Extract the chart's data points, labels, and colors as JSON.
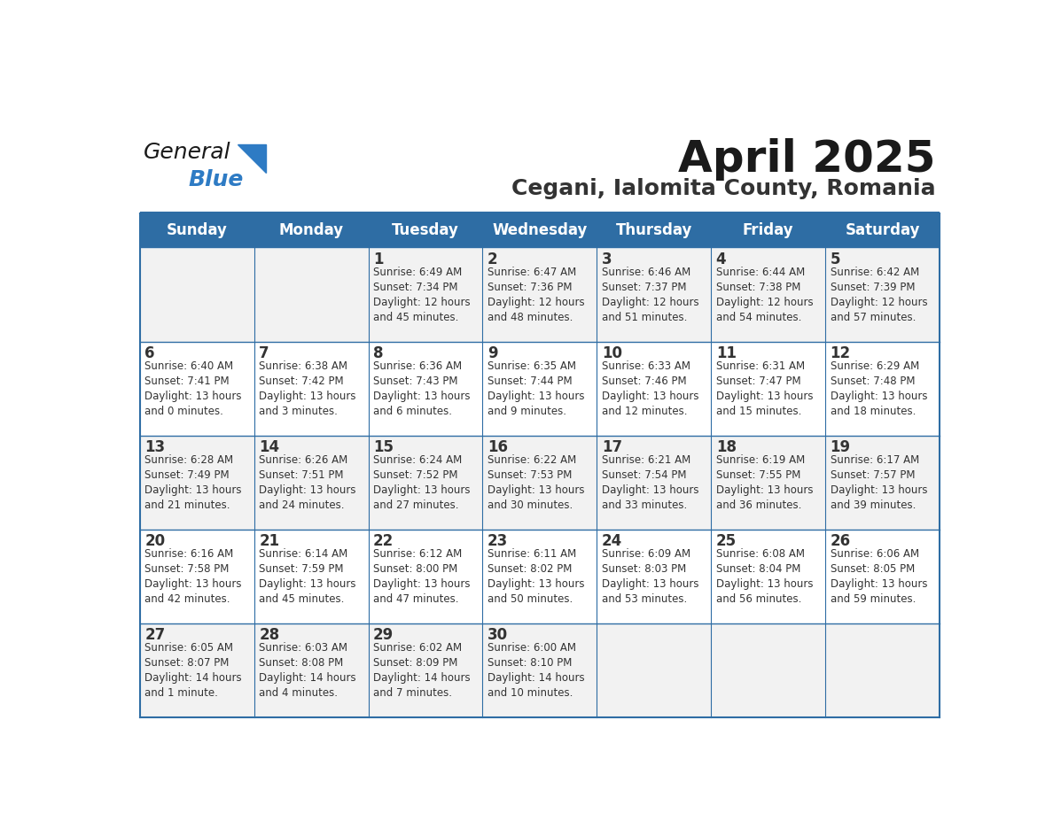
{
  "title": "April 2025",
  "subtitle": "Cegani, Ialomita County, Romania",
  "header_bg": "#2E6DA4",
  "header_text_color": "#FFFFFF",
  "cell_bg_odd": "#F2F2F2",
  "cell_bg_even": "#FFFFFF",
  "cell_text_color": "#333333",
  "day_headers": [
    "Sunday",
    "Monday",
    "Tuesday",
    "Wednesday",
    "Thursday",
    "Friday",
    "Saturday"
  ],
  "weeks": [
    [
      {
        "day": "",
        "info": ""
      },
      {
        "day": "",
        "info": ""
      },
      {
        "day": "1",
        "info": "Sunrise: 6:49 AM\nSunset: 7:34 PM\nDaylight: 12 hours\nand 45 minutes."
      },
      {
        "day": "2",
        "info": "Sunrise: 6:47 AM\nSunset: 7:36 PM\nDaylight: 12 hours\nand 48 minutes."
      },
      {
        "day": "3",
        "info": "Sunrise: 6:46 AM\nSunset: 7:37 PM\nDaylight: 12 hours\nand 51 minutes."
      },
      {
        "day": "4",
        "info": "Sunrise: 6:44 AM\nSunset: 7:38 PM\nDaylight: 12 hours\nand 54 minutes."
      },
      {
        "day": "5",
        "info": "Sunrise: 6:42 AM\nSunset: 7:39 PM\nDaylight: 12 hours\nand 57 minutes."
      }
    ],
    [
      {
        "day": "6",
        "info": "Sunrise: 6:40 AM\nSunset: 7:41 PM\nDaylight: 13 hours\nand 0 minutes."
      },
      {
        "day": "7",
        "info": "Sunrise: 6:38 AM\nSunset: 7:42 PM\nDaylight: 13 hours\nand 3 minutes."
      },
      {
        "day": "8",
        "info": "Sunrise: 6:36 AM\nSunset: 7:43 PM\nDaylight: 13 hours\nand 6 minutes."
      },
      {
        "day": "9",
        "info": "Sunrise: 6:35 AM\nSunset: 7:44 PM\nDaylight: 13 hours\nand 9 minutes."
      },
      {
        "day": "10",
        "info": "Sunrise: 6:33 AM\nSunset: 7:46 PM\nDaylight: 13 hours\nand 12 minutes."
      },
      {
        "day": "11",
        "info": "Sunrise: 6:31 AM\nSunset: 7:47 PM\nDaylight: 13 hours\nand 15 minutes."
      },
      {
        "day": "12",
        "info": "Sunrise: 6:29 AM\nSunset: 7:48 PM\nDaylight: 13 hours\nand 18 minutes."
      }
    ],
    [
      {
        "day": "13",
        "info": "Sunrise: 6:28 AM\nSunset: 7:49 PM\nDaylight: 13 hours\nand 21 minutes."
      },
      {
        "day": "14",
        "info": "Sunrise: 6:26 AM\nSunset: 7:51 PM\nDaylight: 13 hours\nand 24 minutes."
      },
      {
        "day": "15",
        "info": "Sunrise: 6:24 AM\nSunset: 7:52 PM\nDaylight: 13 hours\nand 27 minutes."
      },
      {
        "day": "16",
        "info": "Sunrise: 6:22 AM\nSunset: 7:53 PM\nDaylight: 13 hours\nand 30 minutes."
      },
      {
        "day": "17",
        "info": "Sunrise: 6:21 AM\nSunset: 7:54 PM\nDaylight: 13 hours\nand 33 minutes."
      },
      {
        "day": "18",
        "info": "Sunrise: 6:19 AM\nSunset: 7:55 PM\nDaylight: 13 hours\nand 36 minutes."
      },
      {
        "day": "19",
        "info": "Sunrise: 6:17 AM\nSunset: 7:57 PM\nDaylight: 13 hours\nand 39 minutes."
      }
    ],
    [
      {
        "day": "20",
        "info": "Sunrise: 6:16 AM\nSunset: 7:58 PM\nDaylight: 13 hours\nand 42 minutes."
      },
      {
        "day": "21",
        "info": "Sunrise: 6:14 AM\nSunset: 7:59 PM\nDaylight: 13 hours\nand 45 minutes."
      },
      {
        "day": "22",
        "info": "Sunrise: 6:12 AM\nSunset: 8:00 PM\nDaylight: 13 hours\nand 47 minutes."
      },
      {
        "day": "23",
        "info": "Sunrise: 6:11 AM\nSunset: 8:02 PM\nDaylight: 13 hours\nand 50 minutes."
      },
      {
        "day": "24",
        "info": "Sunrise: 6:09 AM\nSunset: 8:03 PM\nDaylight: 13 hours\nand 53 minutes."
      },
      {
        "day": "25",
        "info": "Sunrise: 6:08 AM\nSunset: 8:04 PM\nDaylight: 13 hours\nand 56 minutes."
      },
      {
        "day": "26",
        "info": "Sunrise: 6:06 AM\nSunset: 8:05 PM\nDaylight: 13 hours\nand 59 minutes."
      }
    ],
    [
      {
        "day": "27",
        "info": "Sunrise: 6:05 AM\nSunset: 8:07 PM\nDaylight: 14 hours\nand 1 minute."
      },
      {
        "day": "28",
        "info": "Sunrise: 6:03 AM\nSunset: 8:08 PM\nDaylight: 14 hours\nand 4 minutes."
      },
      {
        "day": "29",
        "info": "Sunrise: 6:02 AM\nSunset: 8:09 PM\nDaylight: 14 hours\nand 7 minutes."
      },
      {
        "day": "30",
        "info": "Sunrise: 6:00 AM\nSunset: 8:10 PM\nDaylight: 14 hours\nand 10 minutes."
      },
      {
        "day": "",
        "info": ""
      },
      {
        "day": "",
        "info": ""
      },
      {
        "day": "",
        "info": ""
      }
    ]
  ],
  "logo_color_general": "#1a1a1a",
  "logo_color_blue": "#2E7BC4",
  "logo_triangle_color": "#2E7BC4",
  "border_color": "#2E6DA4",
  "line_color": "#2E6DA4"
}
